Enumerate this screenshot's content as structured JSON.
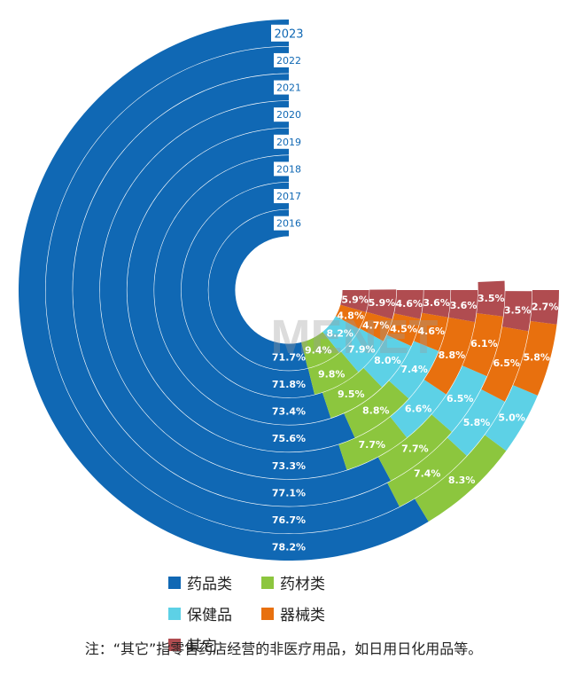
{
  "chart_data": {
    "type": "radial-stacked-bar",
    "series": [
      {
        "name": "药品类",
        "color": "#1068b4",
        "values": [
          78.2,
          76.7,
          77.1,
          73.3,
          75.6,
          73.4,
          71.8,
          71.7
        ]
      },
      {
        "name": "药材类",
        "color": "#8cc63e",
        "values": [
          8.3,
          7.4,
          7.7,
          7.7,
          8.8,
          9.5,
          9.8,
          9.4
        ]
      },
      {
        "name": "保健品",
        "color": "#5dd1e6",
        "values": [
          5.0,
          5.8,
          6.5,
          6.6,
          7.4,
          8.0,
          7.9,
          8.2
        ]
      },
      {
        "name": "器械类",
        "color": "#e8700e",
        "values": [
          5.8,
          6.5,
          6.1,
          8.8,
          4.6,
          4.5,
          4.7,
          4.8
        ]
      },
      {
        "name": "其它",
        "color": "#b04c50",
        "values": [
          2.7,
          3.5,
          3.5,
          3.6,
          3.6,
          4.6,
          5.9,
          5.9
        ]
      }
    ],
    "categories": [
      "2023",
      "2022",
      "2021",
      "2020",
      "2019",
      "2018",
      "2017",
      "2016"
    ],
    "unit": "%"
  },
  "legend": {
    "items": [
      {
        "label": "药品类",
        "color": "#1068b4"
      },
      {
        "label": "药材类",
        "color": "#8cc63e"
      },
      {
        "label": "保健品",
        "color": "#5dd1e6"
      },
      {
        "label": "器械类",
        "color": "#e8700e"
      },
      {
        "label": "其它",
        "color": "#b04c50"
      }
    ]
  },
  "note": "注：“其它”指零售药店经营的非医疗用品，如日用日化用品等。",
  "watermark": "MENET"
}
